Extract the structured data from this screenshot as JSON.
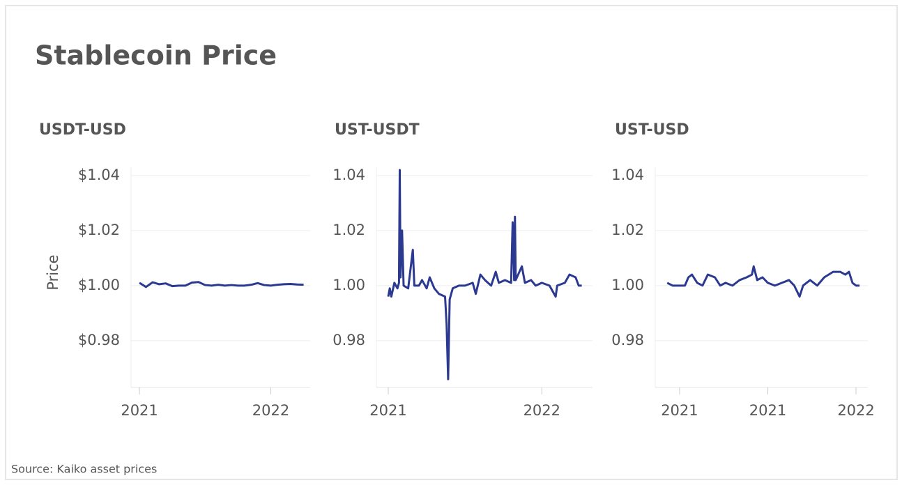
{
  "title": "Stablecoin Price",
  "source": "Source: Kaiko asset prices",
  "chart_data": [
    {
      "type": "line",
      "title": "USDT-USD",
      "y_label": "Price",
      "color": "#2b3990",
      "grid": true,
      "x": [
        2021.0,
        2021.05,
        2021.1,
        2021.15,
        2021.2,
        2021.25,
        2021.3,
        2021.35,
        2021.4,
        2021.45,
        2021.5,
        2021.55,
        2021.6,
        2021.65,
        2021.7,
        2021.75,
        2021.8,
        2021.85,
        2021.9,
        2021.95,
        2022.0,
        2022.05,
        2022.1,
        2022.15,
        2022.2,
        2022.25
      ],
      "values": [
        1.001,
        0.9995,
        1.0012,
        1.0005,
        1.0008,
        0.9998,
        1.0,
        1.0,
        1.0011,
        1.0013,
        1.0002,
        1.0,
        1.0003,
        1.0,
        1.0002,
        1.0,
        1.0,
        1.0003,
        1.0009,
        1.0002,
        1.0,
        1.0003,
        1.0005,
        1.0006,
        1.0004,
        1.0003
      ],
      "xlim": [
        2020.936,
        2022.3
      ],
      "xticks": [
        2021,
        2022
      ],
      "ylim": [
        0.963,
        1.043
      ],
      "yticks": [
        {
          "value": 0.98,
          "label": "$0.98"
        },
        {
          "value": 1.0,
          "label": "$1.00"
        },
        {
          "value": 1.02,
          "label": "$1.02"
        },
        {
          "value": 1.04,
          "label": "$1.04"
        }
      ]
    },
    {
      "type": "line",
      "title": "UST-USDT",
      "color": "#2b3990",
      "grid": true,
      "x": [
        2021.0,
        2021.01,
        2021.02,
        2021.04,
        2021.06,
        2021.07,
        2021.075,
        2021.08,
        2021.09,
        2021.1,
        2021.13,
        2021.16,
        2021.17,
        2021.2,
        2021.22,
        2021.25,
        2021.27,
        2021.3,
        2021.33,
        2021.37,
        2021.38,
        2021.39,
        2021.4,
        2021.42,
        2021.46,
        2021.5,
        2021.55,
        2021.57,
        2021.6,
        2021.63,
        2021.67,
        2021.7,
        2021.72,
        2021.76,
        2021.8,
        2021.81,
        2021.82,
        2021.825,
        2021.83,
        2021.87,
        2021.89,
        2021.93,
        2021.96,
        2022.0,
        2022.05,
        2022.09,
        2022.1,
        2022.15,
        2022.18,
        2022.22,
        2022.24,
        2022.26
      ],
      "values": [
        0.996,
        0.999,
        0.996,
        1.001,
        0.999,
        1.001,
        1.042,
        1.003,
        1.02,
        1.0,
        0.999,
        1.013,
        1.0,
        1.0,
        1.002,
        0.999,
        1.003,
        0.999,
        0.997,
        0.996,
        0.986,
        0.966,
        0.995,
        0.999,
        1.0,
        1.0,
        1.001,
        0.997,
        1.004,
        1.002,
        1.0,
        1.005,
        1.001,
        1.002,
        1.001,
        1.023,
        1.002,
        1.025,
        1.002,
        1.007,
        1.001,
        1.002,
        1.0,
        1.001,
        1.0,
        0.996,
        1.0,
        1.001,
        1.004,
        1.003,
        1.0,
        1.0
      ],
      "xlim": [
        2020.923,
        2022.33
      ],
      "xticks": [
        2021,
        2022
      ],
      "ylim": [
        0.963,
        1.043
      ],
      "yticks": [
        0.98,
        {
          "value": 1.0,
          "label": "1.00"
        },
        1.02,
        1.04
      ]
    },
    {
      "type": "line",
      "title": "UST-USD",
      "color": "#2b3990",
      "grid": true,
      "x": [
        2020.93,
        2020.96,
        2021.0,
        2021.03,
        2021.05,
        2021.07,
        2021.1,
        2021.13,
        2021.16,
        2021.2,
        2021.23,
        2021.26,
        2021.3,
        2021.34,
        2021.38,
        2021.41,
        2021.42,
        2021.44,
        2021.47,
        2021.5,
        2021.54,
        2021.58,
        2021.62,
        2021.65,
        2021.68,
        2021.7,
        2021.74,
        2021.78,
        2021.82,
        2021.87,
        2021.91,
        2021.94,
        2021.96,
        2021.98,
        2022.0,
        2022.02
      ],
      "values": [
        1.001,
        1.0,
        1.0,
        1.0,
        1.003,
        1.004,
        1.001,
        1.0,
        1.004,
        1.003,
        1.0,
        1.001,
        1.0,
        1.002,
        1.003,
        1.004,
        1.007,
        1.002,
        1.003,
        1.001,
        1.0,
        1.001,
        1.002,
        1.0,
        0.996,
        1.0,
        1.002,
        1.0,
        1.003,
        1.005,
        1.005,
        1.004,
        1.005,
        1.001,
        1.0,
        1.0
      ],
      "xlim": [
        2020.862,
        2022.067
      ],
      "xticks": [
        2021,
        {
          "value": 2021.5,
          "label": "2021"
        },
        2022
      ],
      "ylim": [
        0.963,
        1.043
      ],
      "yticks": [
        0.98,
        {
          "value": 1.0,
          "label": "1.00"
        },
        1.02,
        1.04
      ]
    }
  ]
}
